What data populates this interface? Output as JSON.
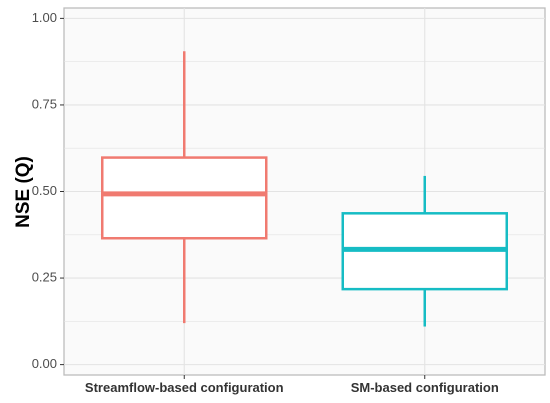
{
  "chart_data": {
    "type": "box",
    "title": "",
    "xlabel": "",
    "ylabel": "NSE (Q)",
    "ylim": [
      -0.03,
      1.03
    ],
    "yticks": [
      0.0,
      0.25,
      0.5,
      0.75,
      1.0
    ],
    "ytick_labels": [
      "0.00",
      "0.25",
      "0.50",
      "0.75",
      "1.00"
    ],
    "grid": true,
    "legend": "none",
    "categories": [
      "Streamflow-based configuration",
      "SM-based configuration"
    ],
    "series": [
      {
        "category": "Streamflow-based configuration",
        "min": 0.12,
        "q1": 0.365,
        "median": 0.493,
        "q3": 0.598,
        "max": 0.905,
        "color": "#F07A70"
      },
      {
        "category": "SM-based configuration",
        "min": 0.11,
        "q1": 0.218,
        "median": 0.333,
        "q3": 0.437,
        "max": 0.545,
        "color": "#16BCC4"
      }
    ],
    "colors": {
      "panel_bg": "#FAFAFA",
      "grid": "#E3E3E3",
      "panel_border": "#BDBDBD"
    }
  }
}
